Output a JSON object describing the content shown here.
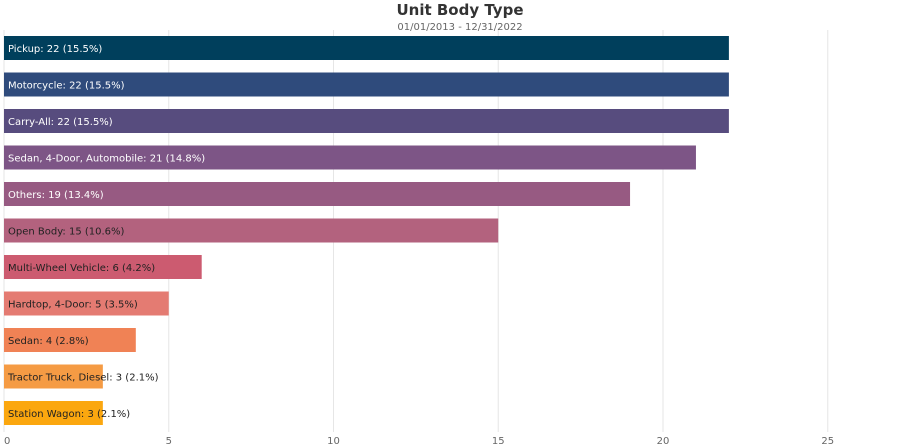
{
  "chart_data": {
    "type": "bar",
    "orientation": "horizontal",
    "title": "Unit Body Type",
    "subtitle": "01/01/2013 - 12/31/2022",
    "xlim": [
      0,
      27
    ],
    "xticks": [
      0,
      5,
      10,
      15,
      20,
      25
    ],
    "grid": true,
    "categories": [
      "Pickup: 22 (15.5%)",
      "Motorcycle: 22 (15.5%)",
      "Carry-All: 22 (15.5%)",
      "Sedan, 4-Door, Automobile: 21 (14.8%)",
      "Others: 19 (13.4%)",
      "Open Body: 15 (10.6%)",
      "Multi-Wheel Vehicle: 6 (4.2%)",
      "Hardtop, 4-Door: 5 (3.5%)",
      "Sedan: 4 (2.8%)",
      "Tractor Truck, Diesel: 3 (2.1%)",
      "Station Wagon: 3 (2.1%)"
    ],
    "values": [
      22,
      22,
      22,
      21,
      19,
      15,
      6,
      5,
      4,
      3,
      3
    ],
    "colors": [
      "#003f5c",
      "#2f4b7c",
      "#574c7e",
      "#7d5586",
      "#975a82",
      "#b3627e",
      "#cc5b70",
      "#e47b72",
      "#f08255",
      "#f59b44",
      "#fba70f"
    ],
    "label_colors": [
      "#ffffff",
      "#ffffff",
      "#ffffff",
      "#ffffff",
      "#ffffff",
      "#222222",
      "#222222",
      "#222222",
      "#222222",
      "#222222",
      "#222222"
    ]
  }
}
